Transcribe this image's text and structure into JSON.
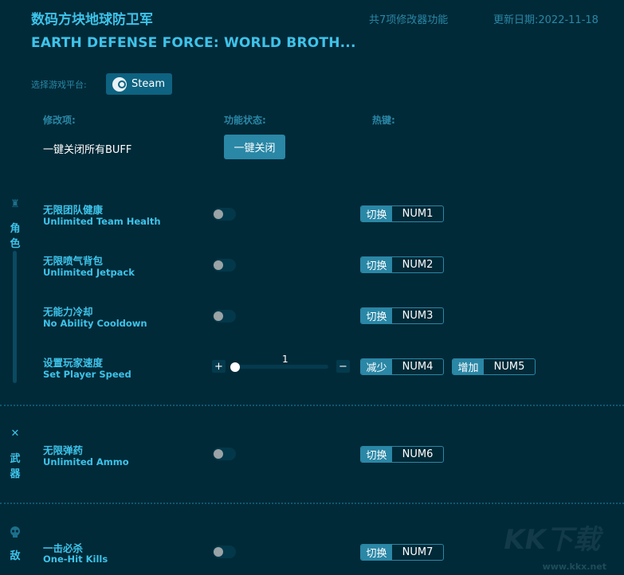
{
  "header": {
    "title_cn": "数码方块地球防卫军",
    "title_en": "EARTH DEFENSE FORCE: WORLD BROTH...",
    "feature_count": "共7项修改器功能",
    "update_date": "更新日期:2022-11-18"
  },
  "platform": {
    "label": "选择游戏平台:",
    "selected": "Steam",
    "icon": "steam-icon"
  },
  "columns": {
    "item": "修改项:",
    "status": "功能状态:",
    "hotkey": "热键:"
  },
  "global": {
    "label": "一键关闭所有BUFF",
    "button": "一键关闭"
  },
  "sections": [
    {
      "name_chars": [
        "角",
        "色"
      ],
      "icon": "character-icon"
    },
    {
      "name_chars": [
        "武",
        "器"
      ],
      "icon": "crossed-swords-icon"
    },
    {
      "name_chars": [
        "敌"
      ],
      "icon": "skull-icon"
    }
  ],
  "items": [
    {
      "cn": "无限团队健康",
      "en": "Unlimited Team Health",
      "on": false,
      "hk_action": "切换",
      "hk_key": "NUM1"
    },
    {
      "cn": "无限喷气背包",
      "en": "Unlimited Jetpack",
      "on": false,
      "hk_action": "切换",
      "hk_key": "NUM2"
    },
    {
      "cn": "无能力冷却",
      "en": "No Ability Cooldown",
      "on": false,
      "hk_action": "切换",
      "hk_key": "NUM3"
    },
    {
      "cn": "设置玩家速度",
      "en": "Set Player Speed",
      "value": "1",
      "plus": "+",
      "minus": "−",
      "hk_dec_action": "减少",
      "hk_dec_key": "NUM4",
      "hk_inc_action": "增加",
      "hk_inc_key": "NUM5"
    },
    {
      "cn": "无限弹药",
      "en": "Unlimited Ammo",
      "on": false,
      "hk_action": "切换",
      "hk_key": "NUM6"
    },
    {
      "cn": "一击必杀",
      "en": "One-Hit Kills",
      "on": false,
      "hk_action": "切换",
      "hk_key": "NUM7"
    }
  ],
  "watermark": {
    "logo": "KK下载",
    "url": "www.kkx.net"
  },
  "colors": {
    "background": "#012a38",
    "accent": "#3ec3ea",
    "button": "#2a87a6"
  }
}
